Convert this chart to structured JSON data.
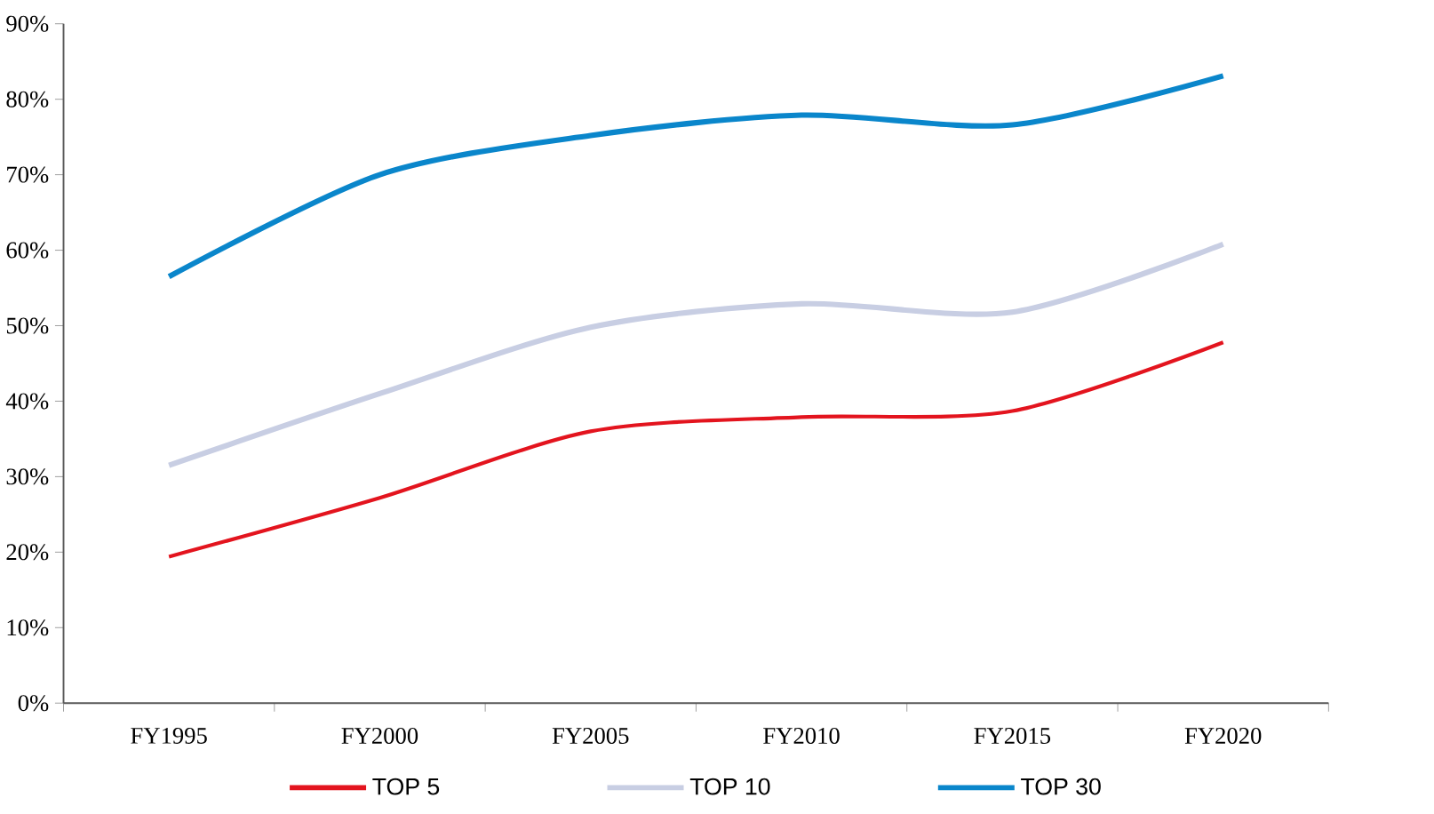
{
  "chart_data": {
    "type": "line",
    "categories": [
      "FY1995",
      "FY2000",
      "FY2005",
      "FY2010",
      "FY2015",
      "FY2020"
    ],
    "series": [
      {
        "name": "TOP 5",
        "color": "#e3141e",
        "values": [
          19.4,
          27.2,
          36.0,
          37.9,
          38.7,
          47.8
        ]
      },
      {
        "name": "TOP 10",
        "color": "#c8cee3",
        "values": [
          31.5,
          41.0,
          49.8,
          52.9,
          51.8,
          60.8
        ]
      },
      {
        "name": "TOP 30",
        "color": "#0a86cb",
        "values": [
          56.5,
          70.0,
          75.2,
          77.9,
          76.6,
          83.1
        ]
      }
    ],
    "ylim": [
      0,
      90
    ],
    "yticks": [
      {
        "value": 0,
        "label": "0%"
      },
      {
        "value": 10,
        "label": "10%"
      },
      {
        "value": 20,
        "label": "20%"
      },
      {
        "value": 30,
        "label": "30%"
      },
      {
        "value": 40,
        "label": "40%"
      },
      {
        "value": 50,
        "label": "50%"
      },
      {
        "value": 60,
        "label": "60%"
      },
      {
        "value": 70,
        "label": "70%"
      },
      {
        "value": 80,
        "label": "80%"
      },
      {
        "value": 90,
        "label": "90%"
      }
    ],
    "grid": false,
    "legend": "bottom",
    "marker": "none",
    "line_style": "solid"
  }
}
